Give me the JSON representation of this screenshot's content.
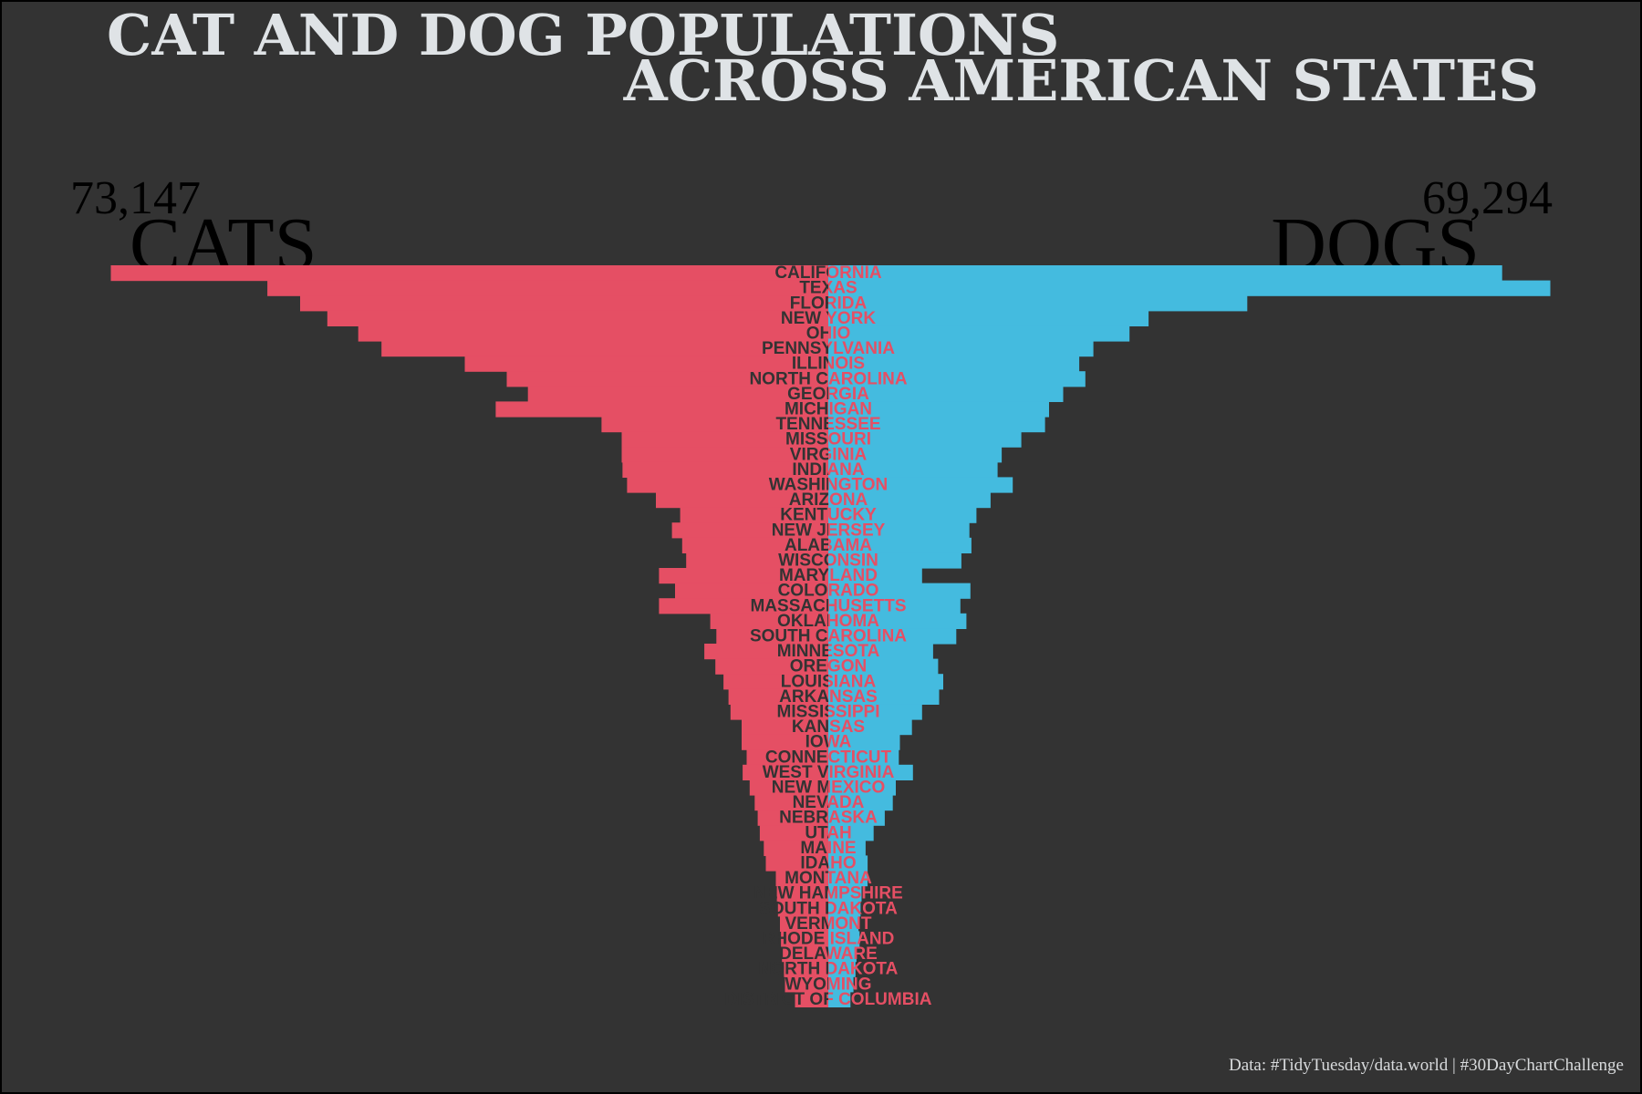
{
  "title": [
    "CAT AND DOG POPULATIONS",
    "ACROSS AMERICAN STATES"
  ],
  "caption": "Data: #TidyTuesday/data.world | #30DayChartChallenge",
  "colors": {
    "background": "#333333",
    "cats": "#e54f64",
    "dogs": "#44bbdf",
    "title": "#dfe3e6",
    "label_dark": "#333333",
    "label_light": "#e54f64"
  },
  "chart_data": {
    "type": "bar",
    "orientation": "horizontal-mirrored",
    "units": "thousands",
    "categories": [
      "CALIFORNIA",
      "TEXAS",
      "FLORIDA",
      "NEW YORK",
      "OHIO",
      "PENNSYLVANIA",
      "ILLINOIS",
      "NORTH CAROLINA",
      "GEORGIA",
      "MICHIGAN",
      "TENNESSEE",
      "MISSOURI",
      "VIRGINIA",
      "INDIANA",
      "WASHINGTON",
      "ARIZONA",
      "KENTUCKY",
      "NEW JERSEY",
      "ALABAMA",
      "WISCONSIN",
      "MARYLAND",
      "COLORADO",
      "MASSACHUSETTS",
      "OKLAHOMA",
      "SOUTH CAROLINA",
      "MINNESOTA",
      "OREGON",
      "LOUISIANA",
      "ARKANSAS",
      "MISSISSIPPI",
      "KANSAS",
      "IOWA",
      "CONNECTICUT",
      "WEST VIRGINIA",
      "NEW MEXICO",
      "NEVADA",
      "NEBRASKA",
      "UTAH",
      "MAINE",
      "IDAHO",
      "MONTANA",
      "NEW HAMPSHIRE",
      "SOUTH DAKOTA",
      "VERMONT",
      "RHODE ISLAND",
      "DELAWARE",
      "NORTH DAKOTA",
      "WYOMING",
      "DISTRICT OF COLUMBIA"
    ],
    "series": [
      {
        "name": "CATS",
        "total": "73,147",
        "values": [
          7118,
          5565,
          5240,
          4970,
          4663,
          4433,
          3606,
          3190,
          2980,
          3300,
          2250,
          2050,
          2050,
          2042,
          1996,
          1710,
          1470,
          1551,
          1450,
          1410,
          1680,
          1520,
          1680,
          1171,
          1110,
          1230,
          1120,
          1040,
          990,
          970,
          860,
          860,
          810,
          850,
          780,
          730,
          700,
          680,
          640,
          620,
          520,
          510,
          500,
          480,
          470,
          460,
          440,
          430,
          330
        ]
      },
      {
        "name": "DOGS",
        "total": "69,294",
        "values": [
          6685,
          7163,
          4157,
          3177,
          2988,
          2630,
          2490,
          2550,
          2330,
          2190,
          2150,
          1915,
          1720,
          1680,
          1830,
          1610,
          1470,
          1400,
          1420,
          1320,
          930,
          1410,
          1310,
          1370,
          1270,
          1040,
          1090,
          1140,
          1100,
          930,
          830,
          710,
          700,
          840,
          670,
          640,
          560,
          450,
          370,
          390,
          390,
          330,
          320,
          300,
          310,
          280,
          270,
          250,
          220
        ]
      }
    ],
    "xlabel": "",
    "ylabel": "",
    "grid": false,
    "legend": "text labels at top-left (cats) and top-right (dogs)"
  }
}
